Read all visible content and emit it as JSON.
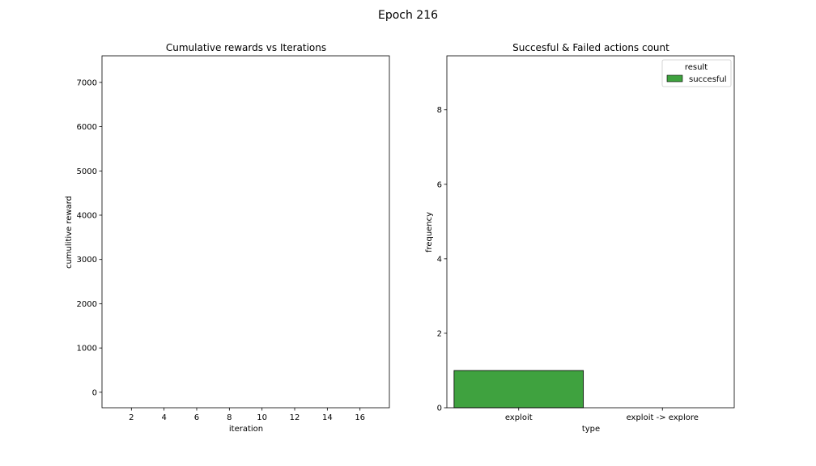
{
  "figure_title": "Epoch 216",
  "chart_data": [
    {
      "type": "line",
      "title": "Cumulative rewards vs Iterations",
      "xlabel": "iteration",
      "ylabel": "cumulitive reward",
      "xlim": [
        0.2,
        17.8
      ],
      "ylim": [
        -350,
        7600
      ],
      "x_ticks": [
        2,
        4,
        6,
        8,
        10,
        12,
        14,
        16
      ],
      "y_ticks": [
        0,
        1000,
        2000,
        3000,
        4000,
        5000,
        6000,
        7000
      ],
      "series": [],
      "grid": false
    },
    {
      "type": "bar",
      "title": "Succesful & Failed actions count",
      "xlabel": "type",
      "ylabel": "frequency",
      "categories": [
        "exploit",
        "exploit -> explore"
      ],
      "ylim": [
        0,
        9.45
      ],
      "y_ticks": [
        0,
        2,
        4,
        6,
        8
      ],
      "series": [
        {
          "name": "succesful",
          "values": [
            1,
            0
          ],
          "color": "#3fa23f"
        }
      ],
      "legend": {
        "title": "result",
        "placement": "top-right"
      },
      "grid": false
    }
  ]
}
